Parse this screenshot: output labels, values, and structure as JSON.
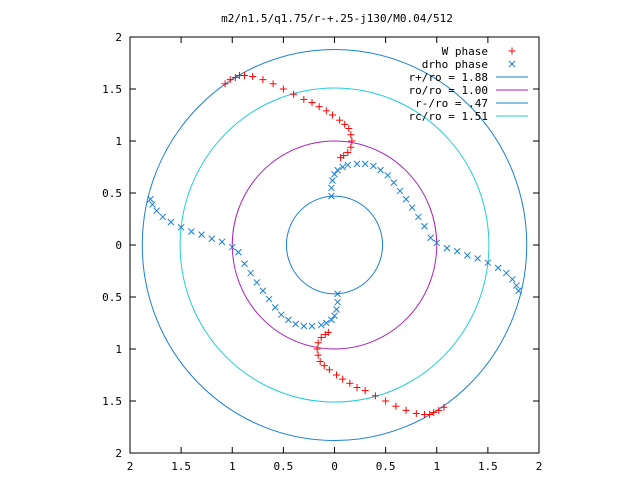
{
  "chart_data": {
    "type": "scatter",
    "title": "m2/n1.5/q1.75/r-+.25-j130/M0.04/512",
    "xlim": [
      -2,
      2
    ],
    "ylim": [
      -2,
      2
    ],
    "x_ticks": [
      -2,
      -1.5,
      -1,
      -0.5,
      0,
      0.5,
      1,
      1.5,
      2
    ],
    "y_ticks": [
      -2,
      -1.5,
      -1,
      -0.5,
      0,
      0.5,
      1,
      1.5,
      2
    ],
    "x_tick_labels": [
      "2",
      "1.5",
      "1",
      "0.5",
      "0",
      "0.5",
      "1",
      "1.5",
      "2"
    ],
    "y_tick_labels": [
      "2",
      "1.5",
      "1",
      "0.5",
      "0",
      "0.5",
      "1",
      "1.5",
      "2"
    ],
    "legend_position": "top-right",
    "grid": false,
    "circles": [
      {
        "name": "r+/ro = 1.88",
        "radius": 1.88,
        "color": "#1a7fd6"
      },
      {
        "name": "ro/ro = 1.00",
        "radius": 1.0,
        "color": "#aa22bb"
      },
      {
        "name": "r-/ro =  .47",
        "radius": 0.47,
        "color": "#1a7fd6"
      },
      {
        "name": "rc/ro = 1.51",
        "radius": 1.51,
        "color": "#22ccdd"
      }
    ],
    "series": [
      {
        "name": "W phase",
        "marker": "+",
        "color": "#ff0000",
        "points": [
          [
            -1.07,
            1.55
          ],
          [
            -1.02,
            1.59
          ],
          [
            -0.97,
            1.61
          ],
          [
            -0.93,
            1.63
          ],
          [
            -0.88,
            1.63
          ],
          [
            -0.8,
            1.62
          ],
          [
            -0.7,
            1.59
          ],
          [
            -0.6,
            1.55
          ],
          [
            -0.5,
            1.5
          ],
          [
            -0.4,
            1.45
          ],
          [
            -0.3,
            1.4
          ],
          [
            -0.22,
            1.37
          ],
          [
            -0.15,
            1.33
          ],
          [
            -0.08,
            1.29
          ],
          [
            -0.02,
            1.25
          ],
          [
            0.05,
            1.2
          ],
          [
            0.1,
            1.16
          ],
          [
            0.14,
            1.12
          ],
          [
            0.16,
            1.06
          ],
          [
            0.17,
            1.0
          ],
          [
            0.16,
            0.94
          ],
          [
            0.13,
            0.89
          ],
          [
            0.09,
            0.86
          ],
          [
            0.06,
            0.84
          ],
          [
            -0.06,
            -0.84
          ],
          [
            -0.09,
            -0.86
          ],
          [
            -0.13,
            -0.89
          ],
          [
            -0.16,
            -0.94
          ],
          [
            -0.17,
            -1.0
          ],
          [
            -0.16,
            -1.06
          ],
          [
            -0.14,
            -1.12
          ],
          [
            -0.1,
            -1.16
          ],
          [
            -0.05,
            -1.2
          ],
          [
            0.02,
            -1.25
          ],
          [
            0.08,
            -1.29
          ],
          [
            0.15,
            -1.33
          ],
          [
            0.22,
            -1.37
          ],
          [
            0.3,
            -1.4
          ],
          [
            0.4,
            -1.45
          ],
          [
            0.5,
            -1.5
          ],
          [
            0.6,
            -1.55
          ],
          [
            0.7,
            -1.59
          ],
          [
            0.8,
            -1.62
          ],
          [
            0.88,
            -1.63
          ],
          [
            0.93,
            -1.63
          ],
          [
            0.97,
            -1.61
          ],
          [
            1.02,
            -1.59
          ],
          [
            1.07,
            -1.56
          ]
        ]
      },
      {
        "name": "drho phase",
        "marker": "x",
        "color": "#1a7fd6",
        "points": [
          [
            -0.03,
            0.47
          ],
          [
            -0.03,
            0.55
          ],
          [
            -0.02,
            0.62
          ],
          [
            0.0,
            0.68
          ],
          [
            0.03,
            0.72
          ],
          [
            0.08,
            0.75
          ],
          [
            0.13,
            0.77
          ],
          [
            0.22,
            0.78
          ],
          [
            0.3,
            0.78
          ],
          [
            0.38,
            0.76
          ],
          [
            0.45,
            0.72
          ],
          [
            0.52,
            0.67
          ],
          [
            0.58,
            0.6
          ],
          [
            0.64,
            0.52
          ],
          [
            0.7,
            0.44
          ],
          [
            0.76,
            0.36
          ],
          [
            0.82,
            0.27
          ],
          [
            0.88,
            0.18
          ],
          [
            0.94,
            0.07
          ],
          [
            1.0,
            0.02
          ],
          [
            1.1,
            -0.03
          ],
          [
            1.2,
            -0.06
          ],
          [
            1.3,
            -0.1
          ],
          [
            1.4,
            -0.13
          ],
          [
            1.5,
            -0.17
          ],
          [
            1.6,
            -0.22
          ],
          [
            1.68,
            -0.27
          ],
          [
            1.74,
            -0.33
          ],
          [
            1.78,
            -0.39
          ],
          [
            1.8,
            -0.44
          ],
          [
            0.03,
            -0.47
          ],
          [
            0.03,
            -0.55
          ],
          [
            0.02,
            -0.62
          ],
          [
            0.0,
            -0.68
          ],
          [
            -0.03,
            -0.72
          ],
          [
            -0.08,
            -0.75
          ],
          [
            -0.13,
            -0.77
          ],
          [
            -0.22,
            -0.78
          ],
          [
            -0.3,
            -0.78
          ],
          [
            -0.38,
            -0.76
          ],
          [
            -0.45,
            -0.72
          ],
          [
            -0.52,
            -0.67
          ],
          [
            -0.58,
            -0.6
          ],
          [
            -0.64,
            -0.52
          ],
          [
            -0.7,
            -0.44
          ],
          [
            -0.76,
            -0.36
          ],
          [
            -0.82,
            -0.27
          ],
          [
            -0.88,
            -0.18
          ],
          [
            -0.94,
            -0.07
          ],
          [
            -1.0,
            -0.02
          ],
          [
            -1.1,
            0.03
          ],
          [
            -1.2,
            0.06
          ],
          [
            -1.3,
            0.1
          ],
          [
            -1.4,
            0.13
          ],
          [
            -1.5,
            0.17
          ],
          [
            -1.6,
            0.22
          ],
          [
            -1.68,
            0.27
          ],
          [
            -1.74,
            0.33
          ],
          [
            -1.78,
            0.39
          ],
          [
            -1.8,
            0.44
          ]
        ]
      }
    ]
  }
}
